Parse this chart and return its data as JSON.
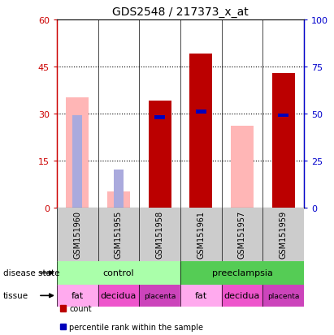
{
  "title": "GDS2548 / 217373_x_at",
  "samples": [
    "GSM151960",
    "GSM151955",
    "GSM151958",
    "GSM151961",
    "GSM151957",
    "GSM151959"
  ],
  "count_values": [
    0,
    0,
    34,
    49,
    0,
    43
  ],
  "percentile_rank_pct": [
    0,
    0,
    48,
    51,
    0,
    49
  ],
  "absent_value": [
    35,
    5,
    0,
    0,
    26,
    0
  ],
  "absent_rank_pct": [
    49,
    20,
    0,
    0,
    0,
    0
  ],
  "detection_absent": [
    true,
    true,
    false,
    false,
    true,
    false
  ],
  "ylim_left": [
    0,
    60
  ],
  "ylim_right": [
    0,
    100
  ],
  "yticks_left": [
    0,
    15,
    30,
    45,
    60
  ],
  "yticks_right": [
    0,
    25,
    50,
    75,
    100
  ],
  "bar_width": 0.55,
  "count_color": "#BB0000",
  "percentile_color": "#0000BB",
  "absent_value_color": "#FFB6B6",
  "absent_rank_color": "#AAAADD",
  "left_axis_color": "#CC0000",
  "right_axis_color": "#0000CC",
  "bg_color": "#FFFFFF",
  "plot_bg": "#FFFFFF",
  "grid_color": "#000000",
  "xticklabel_bg": "#CCCCCC",
  "disease_control_color": "#AAFFAA",
  "disease_preeclampsia_color": "#55CC55",
  "tissue_fat_color": "#FFAAEE",
  "tissue_decidua_color": "#EE55CC",
  "tissue_placenta_color": "#CC44BB"
}
